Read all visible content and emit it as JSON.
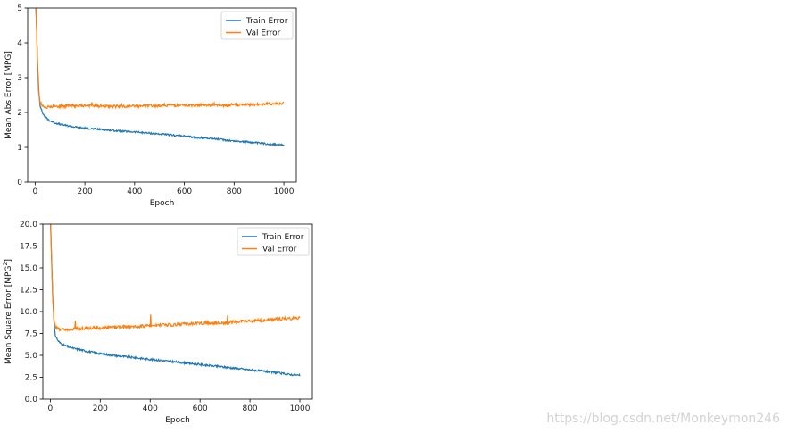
{
  "chart_data": [
    {
      "type": "line",
      "xlabel": "Epoch",
      "ylabel": "Mean Abs Error [MPG]",
      "xlim": [
        -30,
        1050
      ],
      "ylim": [
        0,
        5
      ],
      "xticks": [
        0,
        200,
        400,
        600,
        800,
        1000
      ],
      "yticks": [
        0,
        1,
        2,
        3,
        4,
        5
      ],
      "legend": "top-right",
      "grid": false,
      "series": [
        {
          "name": "Train Error",
          "color": "#1f77b4",
          "x": [
            0,
            5,
            10,
            15,
            20,
            30,
            40,
            60,
            80,
            100,
            150,
            200,
            250,
            300,
            350,
            400,
            450,
            500,
            550,
            600,
            650,
            700,
            750,
            800,
            850,
            900,
            950,
            1000
          ],
          "y": [
            5.4,
            4.6,
            3.4,
            2.6,
            2.2,
            1.98,
            1.87,
            1.76,
            1.7,
            1.66,
            1.59,
            1.55,
            1.52,
            1.49,
            1.46,
            1.44,
            1.41,
            1.38,
            1.35,
            1.32,
            1.28,
            1.26,
            1.22,
            1.18,
            1.16,
            1.12,
            1.09,
            1.06
          ]
        },
        {
          "name": "Val Error",
          "color": "#ff7f0e",
          "x": [
            0,
            5,
            10,
            15,
            20,
            30,
            40,
            60,
            80,
            100,
            150,
            200,
            250,
            300,
            350,
            400,
            450,
            500,
            550,
            600,
            650,
            700,
            750,
            800,
            850,
            900,
            950,
            1000
          ],
          "y": [
            5.4,
            4.7,
            3.2,
            2.5,
            2.28,
            2.18,
            2.15,
            2.16,
            2.17,
            2.18,
            2.19,
            2.2,
            2.19,
            2.18,
            2.17,
            2.18,
            2.19,
            2.2,
            2.21,
            2.2,
            2.21,
            2.22,
            2.2,
            2.22,
            2.22,
            2.24,
            2.25,
            2.27
          ]
        }
      ]
    },
    {
      "type": "line",
      "xlabel": "Epoch",
      "ylabel": "Mean Square Error [$MPG^2$]",
      "xlim": [
        -30,
        1050
      ],
      "ylim": [
        0,
        20
      ],
      "xticks": [
        0,
        200,
        400,
        600,
        800,
        1000
      ],
      "yticks": [
        0.0,
        2.5,
        5.0,
        7.5,
        10.0,
        12.5,
        15.0,
        17.5,
        20.0
      ],
      "legend": "top-right",
      "grid": false,
      "series": [
        {
          "name": "Train Error",
          "color": "#1f77b4",
          "x": [
            0,
            5,
            10,
            15,
            20,
            30,
            40,
            60,
            80,
            100,
            150,
            200,
            250,
            300,
            350,
            400,
            450,
            500,
            550,
            600,
            650,
            700,
            750,
            800,
            850,
            900,
            950,
            1000
          ],
          "y": [
            21,
            16,
            11.5,
            8.5,
            7.3,
            6.7,
            6.4,
            6.1,
            5.9,
            5.75,
            5.45,
            5.2,
            5.0,
            4.85,
            4.7,
            4.55,
            4.4,
            4.25,
            4.1,
            3.95,
            3.8,
            3.65,
            3.5,
            3.35,
            3.2,
            3.05,
            2.85,
            2.7
          ]
        },
        {
          "name": "Val Error",
          "color": "#ff7f0e",
          "x": [
            0,
            5,
            10,
            15,
            20,
            30,
            40,
            60,
            80,
            100,
            150,
            200,
            250,
            300,
            350,
            400,
            450,
            500,
            550,
            600,
            650,
            700,
            750,
            800,
            850,
            900,
            950,
            1000
          ],
          "y": [
            21,
            16,
            11,
            9.0,
            8.3,
            8.0,
            7.95,
            8.0,
            8.0,
            8.05,
            8.1,
            8.15,
            8.2,
            8.25,
            8.3,
            8.4,
            8.45,
            8.5,
            8.6,
            8.65,
            8.7,
            8.75,
            8.85,
            8.9,
            9.0,
            9.1,
            9.2,
            9.3
          ]
        }
      ]
    }
  ],
  "watermark": "https://blog.csdn.net/Monkeymon246"
}
